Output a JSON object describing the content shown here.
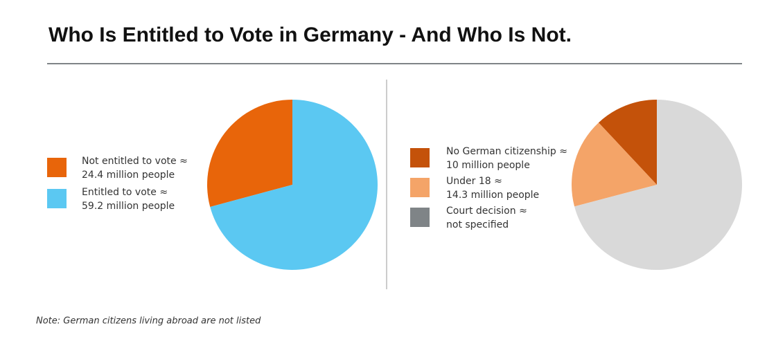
{
  "title": "Who Is Entitled to Vote in Germany - And Who Is Not.",
  "note": "Note: German citizens living abroad are not listed",
  "chart_data": [
    {
      "type": "pie",
      "categories": [
        "Not entitled to vote ≈",
        "Entitled to vote ≈"
      ],
      "values": [
        24.4,
        59.2
      ],
      "value_labels": [
        "24.4 million people",
        "59.2 million people"
      ],
      "colors": [
        "#e8650a",
        "#5bc8f2"
      ]
    },
    {
      "type": "pie",
      "categories": [
        "No German citizenship ≈",
        "Under 18 ≈",
        "Court decision ≈",
        null
      ],
      "values": [
        10,
        14.3,
        null,
        59.2
      ],
      "value_labels": [
        "10 million people",
        "14.3 million people",
        "not specified",
        null
      ],
      "colors": [
        "#c4520a",
        "#f4a468",
        "#7f8487",
        "#d9d9d9"
      ]
    }
  ]
}
